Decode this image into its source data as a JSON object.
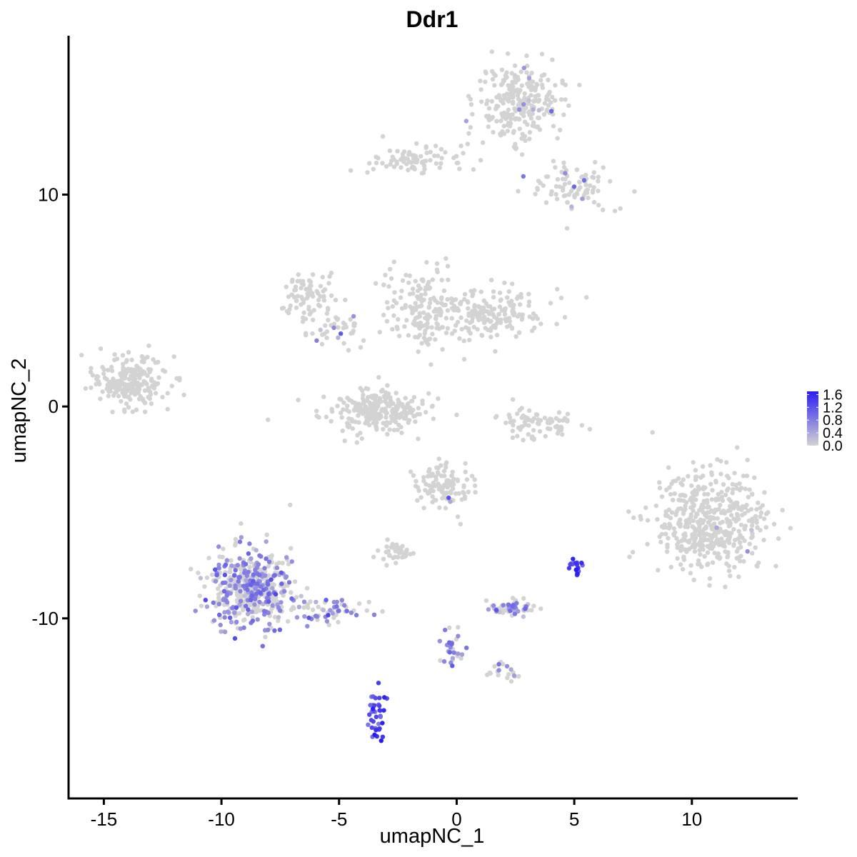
{
  "chart_data": {
    "type": "scatter",
    "title": "Ddr1",
    "xlabel": "umapNC_1",
    "ylabel": "umapNC_2",
    "xlim": [
      -16.5,
      14.5
    ],
    "ylim": [
      -18.5,
      17.5
    ],
    "x_ticks": [
      -15,
      -10,
      -5,
      0,
      5,
      10
    ],
    "y_ticks": [
      -10,
      0,
      10
    ],
    "x_tick_labels": [
      "-15",
      "-10",
      "-5",
      "0",
      "5",
      "10"
    ],
    "y_tick_labels": [
      "-10",
      "0",
      "10"
    ],
    "grid": false,
    "legend_placement": "right",
    "color_scale": {
      "low_color": "#d3d3d3",
      "high_color": "#2a1cf2",
      "min": 0.0,
      "max": 1.7,
      "breaks": [
        0.0,
        0.4,
        0.8,
        1.2,
        1.6
      ],
      "break_labels": [
        "0.0",
        "0.4",
        "0.8",
        "1.2",
        "1.6"
      ]
    },
    "clusters": [
      {
        "cx": -13.9,
        "cy": 1.2,
        "sx": 0.8,
        "sy": 0.6,
        "n": 220,
        "expr_frac": 0.0,
        "expr_mean": 0.0
      },
      {
        "cx": -3.6,
        "cy": -0.2,
        "sx": 1.1,
        "sy": 0.5,
        "n": 260,
        "expr_frac": 0.0,
        "expr_mean": 0.0
      },
      {
        "cx": -6.4,
        "cy": 5.2,
        "sx": 0.6,
        "sy": 0.6,
        "n": 80,
        "expr_frac": 0.0,
        "expr_mean": 0.0
      },
      {
        "cx": -5.0,
        "cy": 3.7,
        "sx": 0.5,
        "sy": 0.4,
        "n": 40,
        "expr_frac": 0.15,
        "expr_mean": 0.6
      },
      {
        "cx": -1.5,
        "cy": 4.6,
        "sx": 0.8,
        "sy": 1.0,
        "n": 150,
        "expr_frac": 0.0,
        "expr_mean": 0.0
      },
      {
        "cx": 1.3,
        "cy": 4.4,
        "sx": 1.2,
        "sy": 0.6,
        "n": 180,
        "expr_frac": 0.0,
        "expr_mean": 0.0
      },
      {
        "cx": 2.6,
        "cy": 14.3,
        "sx": 0.9,
        "sy": 0.9,
        "n": 260,
        "expr_frac": 0.01,
        "expr_mean": 0.5
      },
      {
        "cx": -1.8,
        "cy": 11.6,
        "sx": 0.9,
        "sy": 0.4,
        "n": 80,
        "expr_frac": 0.0,
        "expr_mean": 0.0
      },
      {
        "cx": 5.0,
        "cy": 10.4,
        "sx": 0.9,
        "sy": 0.6,
        "n": 90,
        "expr_frac": 0.04,
        "expr_mean": 0.6
      },
      {
        "cx": 3.4,
        "cy": -0.8,
        "sx": 0.9,
        "sy": 0.4,
        "n": 80,
        "expr_frac": 0.0,
        "expr_mean": 0.0
      },
      {
        "cx": 10.7,
        "cy": -5.5,
        "sx": 1.2,
        "sy": 1.2,
        "n": 480,
        "expr_frac": 0.003,
        "expr_mean": 0.6
      },
      {
        "cx": -0.5,
        "cy": -3.7,
        "sx": 0.6,
        "sy": 0.6,
        "n": 110,
        "expr_frac": 0.01,
        "expr_mean": 0.6
      },
      {
        "cx": -2.5,
        "cy": -6.9,
        "sx": 0.4,
        "sy": 0.25,
        "n": 40,
        "expr_frac": 0.0,
        "expr_mean": 0.0
      },
      {
        "cx": -8.8,
        "cy": -8.5,
        "sx": 0.9,
        "sy": 0.9,
        "n": 480,
        "expr_frac": 0.4,
        "expr_mean": 0.7
      },
      {
        "cx": -5.5,
        "cy": -9.6,
        "sx": 0.9,
        "sy": 0.35,
        "n": 60,
        "expr_frac": 0.45,
        "expr_mean": 0.7
      },
      {
        "cx": 2.3,
        "cy": -9.5,
        "sx": 0.5,
        "sy": 0.2,
        "n": 60,
        "expr_frac": 0.4,
        "expr_mean": 0.6
      },
      {
        "cx": 5.1,
        "cy": -7.5,
        "sx": 0.18,
        "sy": 0.2,
        "n": 18,
        "expr_frac": 1.0,
        "expr_mean": 1.35
      },
      {
        "cx": -3.4,
        "cy": -14.5,
        "sx": 0.2,
        "sy": 0.6,
        "n": 40,
        "expr_frac": 1.0,
        "expr_mean": 1.2
      },
      {
        "cx": -0.2,
        "cy": -11.4,
        "sx": 0.25,
        "sy": 0.5,
        "n": 30,
        "expr_frac": 0.6,
        "expr_mean": 0.7
      },
      {
        "cx": 2.0,
        "cy": -12.4,
        "sx": 0.4,
        "sy": 0.25,
        "n": 20,
        "expr_frac": 0.2,
        "expr_mean": 0.6
      }
    ]
  }
}
